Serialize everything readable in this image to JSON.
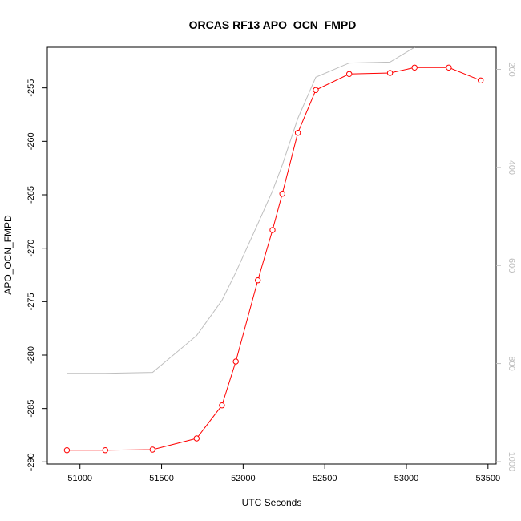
{
  "chart_data": {
    "type": "line",
    "title": "ORCAS RF13 APO_OCN_FMPD",
    "xlabel": "UTC Seconds",
    "ylabel": "APO_OCN_FMPD",
    "xlim": [
      50800,
      53550
    ],
    "ylim": [
      -290.2,
      -251.2
    ],
    "y2lim": [
      1005,
      155
    ],
    "y2_reversed": true,
    "x_ticks": [
      51000,
      51500,
      52000,
      52500,
      53000,
      53500
    ],
    "y_ticks": [
      -290,
      -285,
      -280,
      -275,
      -270,
      -265,
      -260,
      -255
    ],
    "y2_ticks": [
      200,
      400,
      600,
      800,
      1000
    ],
    "colors": {
      "primary": "#ff0000",
      "secondary": "#bebebe",
      "axis": "#000000"
    },
    "series": [
      {
        "axis": "left",
        "color": "#ff0000",
        "marker": "open-circle",
        "x": [
          50920,
          51155,
          51445,
          51715,
          51870,
          51955,
          52090,
          52180,
          52240,
          52335,
          52445,
          52650,
          52900,
          53050,
          53260,
          53455
        ],
        "y": [
          -288.9,
          -288.9,
          -288.85,
          -287.8,
          -284.7,
          -280.6,
          -273.0,
          -268.3,
          -264.9,
          -259.2,
          -255.2,
          -253.7,
          -253.6,
          -253.1,
          -253.1,
          -254.3
        ]
      },
      {
        "axis": "right",
        "color": "#bebebe",
        "marker": "none",
        "x": [
          50920,
          51155,
          51445,
          51715,
          51870,
          51955,
          52090,
          52180,
          52240,
          52335,
          52445,
          52650,
          52900,
          53050
        ],
        "y": [
          820,
          820,
          818,
          743,
          671,
          614,
          515,
          448,
          395,
          300,
          216,
          187,
          185,
          155
        ]
      }
    ]
  }
}
